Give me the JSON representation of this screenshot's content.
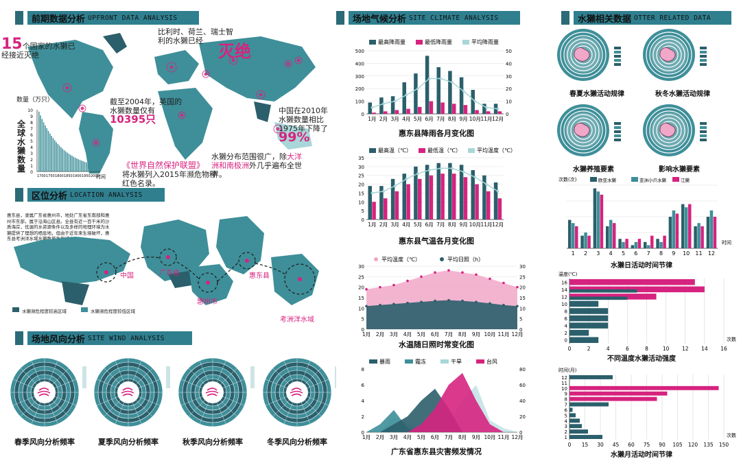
{
  "sections": {
    "upfront": {
      "cn": "前期数据分析",
      "en": "UPFRONT DATA ANALYSIS"
    },
    "location": {
      "cn": "区位分析",
      "en": "LOCATION ANALYSIS"
    },
    "wind": {
      "cn": "场地风向分析",
      "en": "SITE WIND ANALYSIS"
    },
    "climate": {
      "cn": "场地气候分析",
      "en": "SITE CLIMATE ANALYSIS"
    },
    "otter": {
      "cn": "水獭相关数据",
      "en": "OTTER RELATED DATA"
    }
  },
  "upfront": {
    "n15": "15",
    "t15": "个国家的水獭已经接近灭绝",
    "countries": "比利时、荷兰、瑞士智利的水獭已经",
    "extinct": "灭绝",
    "y2004": "截至2004年，英国的水獭数量仅有",
    "n10395": "10395只",
    "y2010": "中国在2010年水獭数量相比1975年下降了",
    "n99": "99%",
    "iucn": "《世界自然保护联盟》",
    "iucn2": "将水獭列入2015年濒危物种红色名录。",
    "dist": "水獭分布范围很广，除",
    "dist_hl": "大洋洲和南极洲",
    "dist2": "外几乎遍布全世界。",
    "qty_label": "数量（万只）",
    "side_label": "全球水獭数量",
    "time_label": "时间",
    "pop_ticks": [
      "10",
      "9",
      "8",
      "7",
      "6",
      "5",
      "4",
      "3",
      "2",
      "1",
      "0"
    ],
    "pop_years": [
      "1700",
      "1750",
      "1800",
      "1850",
      "1900",
      "1950",
      "2000"
    ]
  },
  "location": {
    "para": "惠东县，隶属广东省惠州市，地处广东省东南部和惠州市东部，属于沿海山区县。全县有近一百千米的沙质海岸，优渥的水资源条件以及多样的地理环境为水獭提供了理想的栖息地，但由于近年来生境破坏，惠东县考洲洋水域水獭数量急剧减少。",
    "labels": [
      "中国",
      "广东省",
      "惠州市",
      "惠东县",
      "考洲洋水域"
    ],
    "legend": [
      "水獭濒危程度较高区域",
      "水獭濒危程度较低区域"
    ]
  },
  "wind": {
    "captions": [
      "春季风向分析频率",
      "夏季风向分析频率",
      "秋季风向分析频率",
      "冬季风向分析频率"
    ]
  },
  "colors": {
    "dark": "#2b5f6b",
    "teal": "#3e8f99",
    "light": "#a9d6d8",
    "pink": "#d6237f",
    "lightpink": "#f1a7c8",
    "grey": "#7f9aa0"
  },
  "chart_data": [
    {
      "type": "bar",
      "title": "惠东县降雨各月变化图",
      "categories": [
        "1月",
        "2月",
        "3月",
        "4月",
        "5月",
        "6月",
        "7月",
        "8月",
        "9月",
        "10月",
        "11月",
        "12月"
      ],
      "series": [
        {
          "name": "最高降雨量",
          "values": [
            90,
            130,
            140,
            250,
            320,
            460,
            370,
            340,
            290,
            190,
            80,
            80
          ]
        },
        {
          "name": "最低降雨量",
          "values": [
            10,
            20,
            30,
            40,
            55,
            100,
            90,
            80,
            70,
            30,
            20,
            20
          ]
        },
        {
          "name": "平均降雨量",
          "axis": "right",
          "values": [
            5,
            8,
            10,
            15,
            20,
            28,
            28,
            25,
            18,
            10,
            5,
            4
          ]
        }
      ],
      "ylim": [
        0,
        500
      ],
      "y2lim": [
        0,
        50
      ],
      "yticks": [
        "0",
        "100",
        "200",
        "300",
        "400",
        "500"
      ],
      "y2ticks": [
        "0",
        "10",
        "20",
        "30",
        "40",
        "50"
      ]
    },
    {
      "type": "bar",
      "title": "惠东县气温各月变化图",
      "categories": [
        "1月",
        "2月",
        "3月",
        "4月",
        "5月",
        "6月",
        "7月",
        "8月",
        "9月",
        "10月",
        "11月",
        "12月"
      ],
      "series": [
        {
          "name": "最高温（℃）",
          "values": [
            19,
            19,
            23,
            26,
            30,
            31,
            32,
            32,
            31,
            28,
            25,
            21
          ]
        },
        {
          "name": "最低温（℃）",
          "values": [
            10,
            12,
            16,
            20,
            23,
            25,
            26,
            26,
            24,
            20,
            16,
            12
          ]
        },
        {
          "name": "平均温度（℃）",
          "values": [
            15,
            16,
            19,
            23,
            26,
            28,
            29,
            29,
            27,
            24,
            20,
            16
          ]
        }
      ],
      "ylim": [
        0,
        35
      ],
      "yticks": [
        "0",
        "5",
        "10",
        "15",
        "20",
        "25",
        "30",
        "35"
      ]
    },
    {
      "type": "area",
      "title": "水温随日照时常变化图",
      "categories": [
        "1月",
        "2月",
        "3月",
        "4月",
        "5月",
        "6月",
        "7月",
        "8月",
        "9月",
        "10月",
        "11月",
        "12月"
      ],
      "series": [
        {
          "name": "平均温度（℃）",
          "values": [
            19,
            20,
            21,
            23,
            25,
            27,
            28,
            27,
            26,
            24,
            22,
            20
          ]
        },
        {
          "name": "平均日照（h）",
          "values": [
            11,
            11.5,
            12,
            12.5,
            13,
            13.5,
            13.8,
            13.5,
            13,
            12.3,
            11.5,
            11
          ]
        }
      ],
      "ylim": [
        0,
        30
      ],
      "yticks": [
        "0",
        "5",
        "10",
        "15",
        "20",
        "25",
        "30"
      ]
    },
    {
      "type": "area",
      "title": "广东省惠东县灾害频发情况",
      "categories": [
        "1月",
        "2月",
        "3月",
        "4月",
        "5月",
        "6月",
        "7月",
        "8月",
        "9月",
        "10月",
        "11月",
        "12月"
      ],
      "series": [
        {
          "name": "暴雨",
          "values": [
            0,
            0,
            10,
            20,
            40,
            55,
            30,
            0,
            0,
            0,
            0,
            0
          ]
        },
        {
          "name": "霜冻",
          "values": [
            0,
            10,
            28,
            5,
            0,
            0,
            0,
            0,
            0,
            0,
            0,
            0
          ]
        },
        {
          "name": "干旱",
          "values": [
            0,
            0,
            20,
            10,
            5,
            5,
            10,
            40,
            60,
            15,
            5,
            0
          ]
        },
        {
          "name": "台风",
          "values": [
            0,
            0,
            0,
            0,
            10,
            30,
            60,
            75,
            40,
            10,
            0,
            0
          ]
        }
      ],
      "ylim": [
        0,
        8
      ],
      "yticks": [
        "0",
        "2",
        "4",
        "6",
        "8"
      ],
      "y2ticks": [
        "0",
        "20",
        "40",
        "60",
        "80"
      ]
    },
    {
      "type": "bar",
      "title": "水獭日活动时间节律",
      "categories": [
        "1",
        "2",
        "3",
        "4",
        "5",
        "6",
        "7",
        "8",
        "9",
        "10",
        "11",
        "12"
      ],
      "series": [
        {
          "name": "欧亚水獭",
          "values": [
            9,
            4,
            19,
            7,
            3,
            1,
            2,
            3,
            10,
            14,
            7,
            10
          ]
        },
        {
          "name": "亚洲小爪水獭",
          "values": [
            8,
            5,
            18,
            9,
            2,
            2,
            1,
            2,
            12,
            13,
            8,
            12
          ]
        },
        {
          "name": "江獭",
          "values": [
            7,
            4,
            17,
            8,
            3,
            3,
            4,
            4,
            11,
            14,
            7,
            10
          ]
        }
      ],
      "ylim": [
        0,
        20
      ],
      "unit_label": "次数(次)",
      "x_label": "时间"
    },
    {
      "type": "bar",
      "title": "不同温度水獭活动强度",
      "orientation": "horizontal",
      "categories": [
        "0",
        "2",
        "4",
        "6",
        "8",
        "10",
        "12",
        "14",
        "16"
      ],
      "values": [
        3,
        2,
        4,
        4,
        4,
        3,
        9,
        14,
        13
      ],
      "series": [
        {
          "name": "dark",
          "values": [
            3,
            2,
            4,
            4,
            4,
            3,
            6,
            7,
            0
          ]
        },
        {
          "name": "pink",
          "values": [
            0,
            0,
            0,
            0,
            0,
            0,
            9,
            14,
            13
          ]
        }
      ],
      "xlim": [
        0,
        16
      ],
      "unit_label": "温度(℃)",
      "x_label": "次数"
    },
    {
      "type": "bar",
      "title": "水獭月活动时间节律",
      "orientation": "horizontal",
      "categories": [
        "1",
        "2",
        "3",
        "4",
        "5",
        "6",
        "7",
        "8",
        "9",
        "10",
        "11",
        "12"
      ],
      "series": [
        {
          "name": "dark",
          "values": [
            32,
            18,
            12,
            10,
            6,
            3,
            38,
            0,
            0,
            0,
            0,
            42
          ]
        },
        {
          "name": "pink",
          "values": [
            0,
            0,
            0,
            0,
            0,
            0,
            0,
            85,
            95,
            145,
            0,
            0
          ]
        }
      ],
      "xlim": [
        0,
        150
      ],
      "xticks": [
        "0",
        "15",
        "30",
        "45",
        "60",
        "75",
        "90",
        "105",
        "120",
        "135",
        "150"
      ],
      "unit_label": "时间(月)",
      "x_label": "次数"
    }
  ],
  "otter": {
    "radial": [
      "春夏水獭活动规律",
      "秋冬水獭活动规律",
      "水獭养殖要素",
      "影响水獭要素"
    ]
  }
}
